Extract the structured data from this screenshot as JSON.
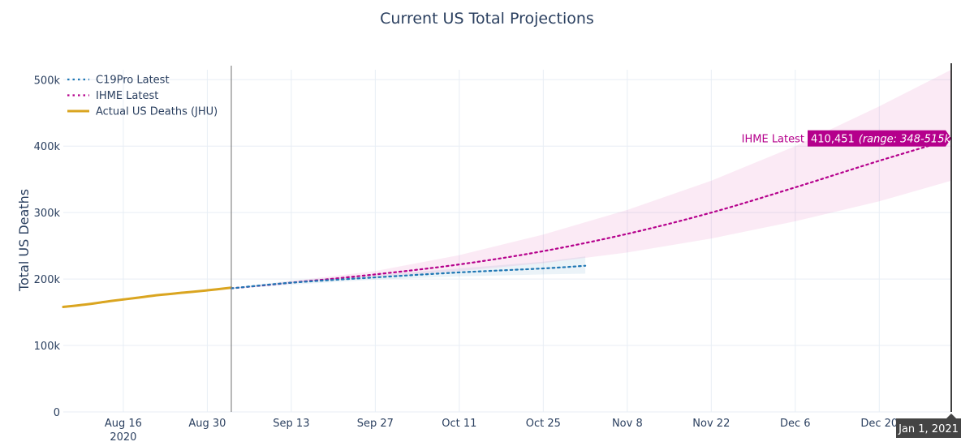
{
  "chart_data": {
    "type": "line",
    "title": "Current US Total Projections",
    "xlabel": "",
    "ylabel": "Total US Deaths",
    "x_range": [
      "2020-08-06",
      "2021-01-01"
    ],
    "ylim": [
      0,
      515000
    ],
    "y_ticks": [
      0,
      100000,
      200000,
      300000,
      400000,
      500000
    ],
    "y_tick_labels": [
      "0",
      "100k",
      "200k",
      "300k",
      "400k",
      "500k"
    ],
    "x_ticks": [
      {
        "date": "2020-08-16",
        "label": "Aug 16",
        "sublabel": "2020"
      },
      {
        "date": "2020-08-30",
        "label": "Aug 30",
        "sublabel": ""
      },
      {
        "date": "2020-09-13",
        "label": "Sep 13",
        "sublabel": ""
      },
      {
        "date": "2020-09-27",
        "label": "Sep 27",
        "sublabel": ""
      },
      {
        "date": "2020-10-11",
        "label": "Oct 11",
        "sublabel": ""
      },
      {
        "date": "2020-10-25",
        "label": "Oct 25",
        "sublabel": ""
      },
      {
        "date": "2020-11-08",
        "label": "Nov 8",
        "sublabel": ""
      },
      {
        "date": "2020-11-22",
        "label": "Nov 22",
        "sublabel": ""
      },
      {
        "date": "2020-12-06",
        "label": "Dec 6",
        "sublabel": ""
      },
      {
        "date": "2020-12-20",
        "label": "Dec 20",
        "sublabel": ""
      }
    ],
    "today_line": "2020-09-03",
    "hover_x_label": "Jan 1, 2021",
    "series": [
      {
        "name": "C19Pro Latest",
        "color": "#1f77b4",
        "dash": "dot",
        "points": [
          {
            "x": "2020-09-03",
            "y": 186000
          },
          {
            "x": "2020-09-13",
            "y": 194500
          },
          {
            "x": "2020-09-27",
            "y": 202500
          },
          {
            "x": "2020-10-11",
            "y": 210000
          },
          {
            "x": "2020-10-25",
            "y": 216000
          },
          {
            "x": "2020-11-01",
            "y": 220000
          }
        ],
        "band_lower": [
          185000,
          191500,
          199000,
          204000,
          207000,
          208000
        ],
        "band_upper": [
          187000,
          197500,
          206000,
          216000,
          226000,
          234000
        ]
      },
      {
        "name": "IHME Latest",
        "color": "#b5008c",
        "dash": "dot",
        "points": [
          {
            "x": "2020-09-03",
            "y": 186000
          },
          {
            "x": "2020-09-13",
            "y": 194500
          },
          {
            "x": "2020-09-27",
            "y": 207000
          },
          {
            "x": "2020-10-11",
            "y": 222000
          },
          {
            "x": "2020-10-25",
            "y": 242000
          },
          {
            "x": "2020-11-08",
            "y": 268000
          },
          {
            "x": "2020-11-22",
            "y": 300000
          },
          {
            "x": "2020-12-06",
            "y": 338000
          },
          {
            "x": "2020-12-20",
            "y": 378000
          },
          {
            "x": "2021-01-01",
            "y": 410451
          }
        ],
        "band_lower": [
          186000,
          194000,
          203000,
          212000,
          224000,
          240000,
          261000,
          287000,
          317000,
          348000
        ],
        "band_upper": [
          186000,
          197000,
          212000,
          236000,
          267000,
          304000,
          348000,
          400000,
          460000,
          515000
        ]
      },
      {
        "name": "Actual US Deaths (JHU)",
        "color": "#daa520",
        "dash": "solid",
        "points": [
          {
            "x": "2020-08-06",
            "y": 158000
          },
          {
            "x": "2020-08-10",
            "y": 162000
          },
          {
            "x": "2020-08-14",
            "y": 167000
          },
          {
            "x": "2020-08-18",
            "y": 171500
          },
          {
            "x": "2020-08-22",
            "y": 176000
          },
          {
            "x": "2020-08-26",
            "y": 179500
          },
          {
            "x": "2020-08-30",
            "y": 183000
          },
          {
            "x": "2020-09-03",
            "y": 187000
          }
        ]
      }
    ],
    "annotation": {
      "label": "IHME Latest",
      "value": "410,451",
      "range_text": "(range: 348-515k)"
    }
  }
}
